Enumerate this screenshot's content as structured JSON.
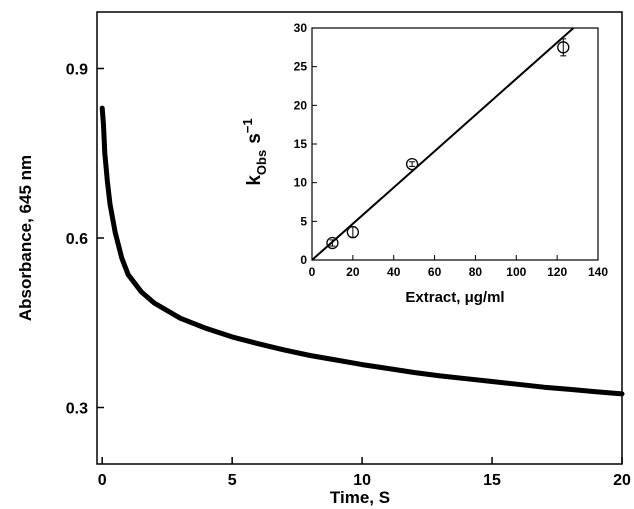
{
  "chart_data": [
    {
      "type": "line",
      "xlabel": "Time, S",
      "ylabel": "Absorbance, 645 nm",
      "xlim": [
        -0.2,
        20
      ],
      "ylim": [
        0.2,
        1.0
      ],
      "x_ticks": [
        0,
        5,
        10,
        15,
        20
      ],
      "x_tick_labels": [
        "0",
        "5",
        "10",
        "15",
        "20"
      ],
      "y_ticks": [
        0.3,
        0.6,
        0.9
      ],
      "y_tick_labels": [
        "0.3",
        "0.6",
        "0.9"
      ],
      "grid": false,
      "series": [
        {
          "x": [
            0.0,
            0.05,
            0.1,
            0.2,
            0.3,
            0.5,
            0.75,
            1.0,
            1.5,
            2.0,
            3.0,
            4.0,
            5.0,
            6.0,
            7.0,
            8.0,
            9.0,
            10.0,
            11.0,
            12.0,
            13.0,
            14.0,
            15.0,
            16.0,
            17.0,
            18.0,
            19.0,
            20.0
          ],
          "y": [
            0.83,
            0.8,
            0.75,
            0.7,
            0.66,
            0.61,
            0.565,
            0.535,
            0.505,
            0.485,
            0.458,
            0.44,
            0.425,
            0.413,
            0.402,
            0.392,
            0.384,
            0.376,
            0.369,
            0.362,
            0.356,
            0.351,
            0.346,
            0.341,
            0.336,
            0.332,
            0.328,
            0.324
          ]
        }
      ]
    },
    {
      "type": "scatter",
      "xlabel": "Extract, μg/ml",
      "ylabel_main": "k",
      "ylabel_sub": "Obs",
      "ylabel_unit": "s",
      "ylabel_exp": "−1",
      "xlim": [
        0,
        140
      ],
      "ylim": [
        0,
        30
      ],
      "x_ticks": [
        0,
        20,
        40,
        60,
        80,
        100,
        120,
        140
      ],
      "x_tick_labels": [
        "0",
        "20",
        "40",
        "60",
        "80",
        "100",
        "120",
        "140"
      ],
      "y_ticks": [
        0,
        5,
        10,
        15,
        20,
        25,
        30
      ],
      "y_tick_labels": [
        "0",
        "5",
        "10",
        "15",
        "20",
        "25",
        "30"
      ],
      "grid": false,
      "points": [
        {
          "x": 10,
          "y": 2.2,
          "err": 0.4
        },
        {
          "x": 20,
          "y": 3.6,
          "err": 0.7
        },
        {
          "x": 49,
          "y": 12.4,
          "err": 0.3
        },
        {
          "x": 123,
          "y": 27.5,
          "err": 1.1
        }
      ],
      "fit_line": {
        "x": [
          0,
          128
        ],
        "y": [
          0,
          30
        ]
      }
    }
  ]
}
